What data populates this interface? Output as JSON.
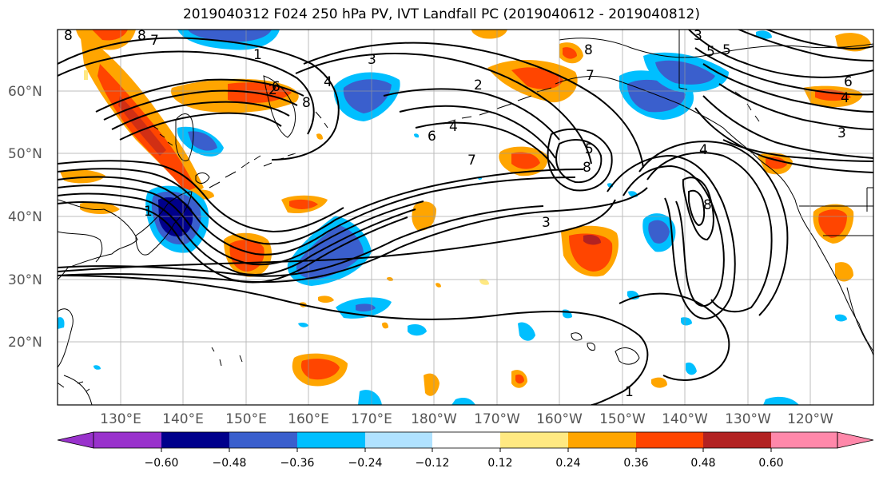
{
  "title": "2019040312 F024 250 hPa PV, IVT Landfall PC (2019040612 - 2019040812)",
  "map": {
    "lat_labels": [
      "60°N",
      "50°N",
      "40°N",
      "30°N",
      "20°N"
    ],
    "lon_labels": [
      "130°E",
      "140°E",
      "150°E",
      "160°E",
      "170°E",
      "180°W",
      "170°W",
      "160°W",
      "150°W",
      "140°W",
      "130°W",
      "120°W"
    ],
    "contour_labels": [
      "1",
      "1",
      "1",
      "2",
      "2",
      "3",
      "3",
      "3",
      "3",
      "4",
      "4",
      "4",
      "4",
      "5",
      "5",
      "5",
      "6",
      "6",
      "6",
      "7",
      "7",
      "7",
      "8",
      "8",
      "8",
      "8",
      "8",
      "8"
    ],
    "grid": true
  },
  "colorbar": {
    "ticks": [
      "−0.60",
      "−0.48",
      "−0.36",
      "−0.24",
      "−0.12",
      "0.12",
      "0.24",
      "0.36",
      "0.48",
      "0.60"
    ],
    "colors": [
      "#9932cc",
      "#00008b",
      "#3a5fcd",
      "#00bfff",
      "#b0e2ff",
      "#ffffff",
      "#ffe982",
      "#ffa500",
      "#ff4500",
      "#b22222",
      "#ff88aa"
    ],
    "extend": "both"
  },
  "shading_colors": {
    "neg_strong": "#3a5fcd",
    "neg_mid": "#00bfff",
    "neg_weak": "#b0e2ff",
    "neg_darkest": "#00008b",
    "pos_weak": "#ffe982",
    "pos_mid": "#ffa500",
    "pos_strong": "#ff4500",
    "pos_darkest": "#b22222"
  }
}
